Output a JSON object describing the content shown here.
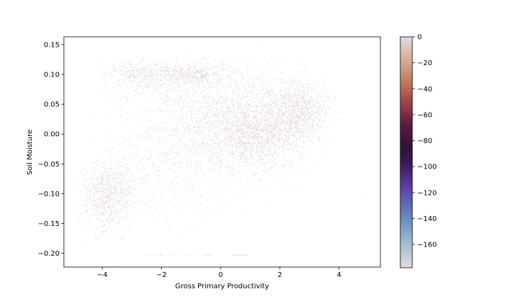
{
  "chart_data": {
    "type": "scatter",
    "title": "",
    "xlabel": "Gross Primary Productivity",
    "ylabel": "Soil Moisture",
    "xlim": [
      -5.3,
      5.4
    ],
    "ylim": [
      -0.223,
      0.163
    ],
    "xticks": [
      -4,
      -2,
      0,
      2,
      4
    ],
    "xtick_labels": [
      "−4",
      "−2",
      "0",
      "2",
      "4"
    ],
    "yticks": [
      0.15,
      0.1,
      0.05,
      0.0,
      -0.05,
      -0.1,
      -0.15,
      -0.2
    ],
    "ytick_labels": [
      "0.15",
      "0.10",
      "0.05",
      "0.00",
      "−0.05",
      "−0.10",
      "−0.15",
      "−0.20"
    ],
    "grid": false,
    "point_color": "#e2d6de",
    "colorbar": {
      "colormap": "twilight",
      "range": [
        -178,
        0
      ],
      "ticks": [
        0,
        -20,
        -40,
        -60,
        -80,
        -100,
        -120,
        -140,
        -160
      ],
      "tick_labels": [
        "0",
        "−20",
        "−40",
        "−60",
        "−80",
        "−100",
        "−120",
        "−140",
        "−160"
      ]
    },
    "clusters": [
      {
        "x": -3.8,
        "y": -0.1,
        "sx": 0.45,
        "sy": 0.03,
        "n": 900
      },
      {
        "x": -2.5,
        "y": 0.1,
        "sx": 0.7,
        "sy": 0.012,
        "n": 500
      },
      {
        "x": -0.8,
        "y": 0.1,
        "sx": 0.5,
        "sy": 0.008,
        "n": 350
      },
      {
        "x": 1.2,
        "y": 0.0,
        "sx": 0.8,
        "sy": 0.03,
        "n": 1600
      },
      {
        "x": 2.6,
        "y": 0.04,
        "sx": 0.5,
        "sy": 0.025,
        "n": 1000
      },
      {
        "x": 0.2,
        "y": 0.03,
        "sx": 1.2,
        "sy": 0.045,
        "n": 900
      },
      {
        "x": -1.5,
        "y": -0.05,
        "sx": 1.0,
        "sy": 0.045,
        "n": 600
      },
      {
        "x": -0.5,
        "y": 0.06,
        "sx": 1.3,
        "sy": 0.035,
        "n": 500
      }
    ],
    "bottom_row": {
      "y": -0.203,
      "x_ranges": [
        [
          -2.6,
          -0.3
        ],
        [
          0.4,
          0.9
        ]
      ],
      "n": 60
    },
    "outliers": [
      [
        4.85,
        -0.105
      ],
      [
        1.2,
        0.145
      ],
      [
        -1.0,
        0.14
      ],
      [
        -4.5,
        -0.19
      ]
    ]
  }
}
